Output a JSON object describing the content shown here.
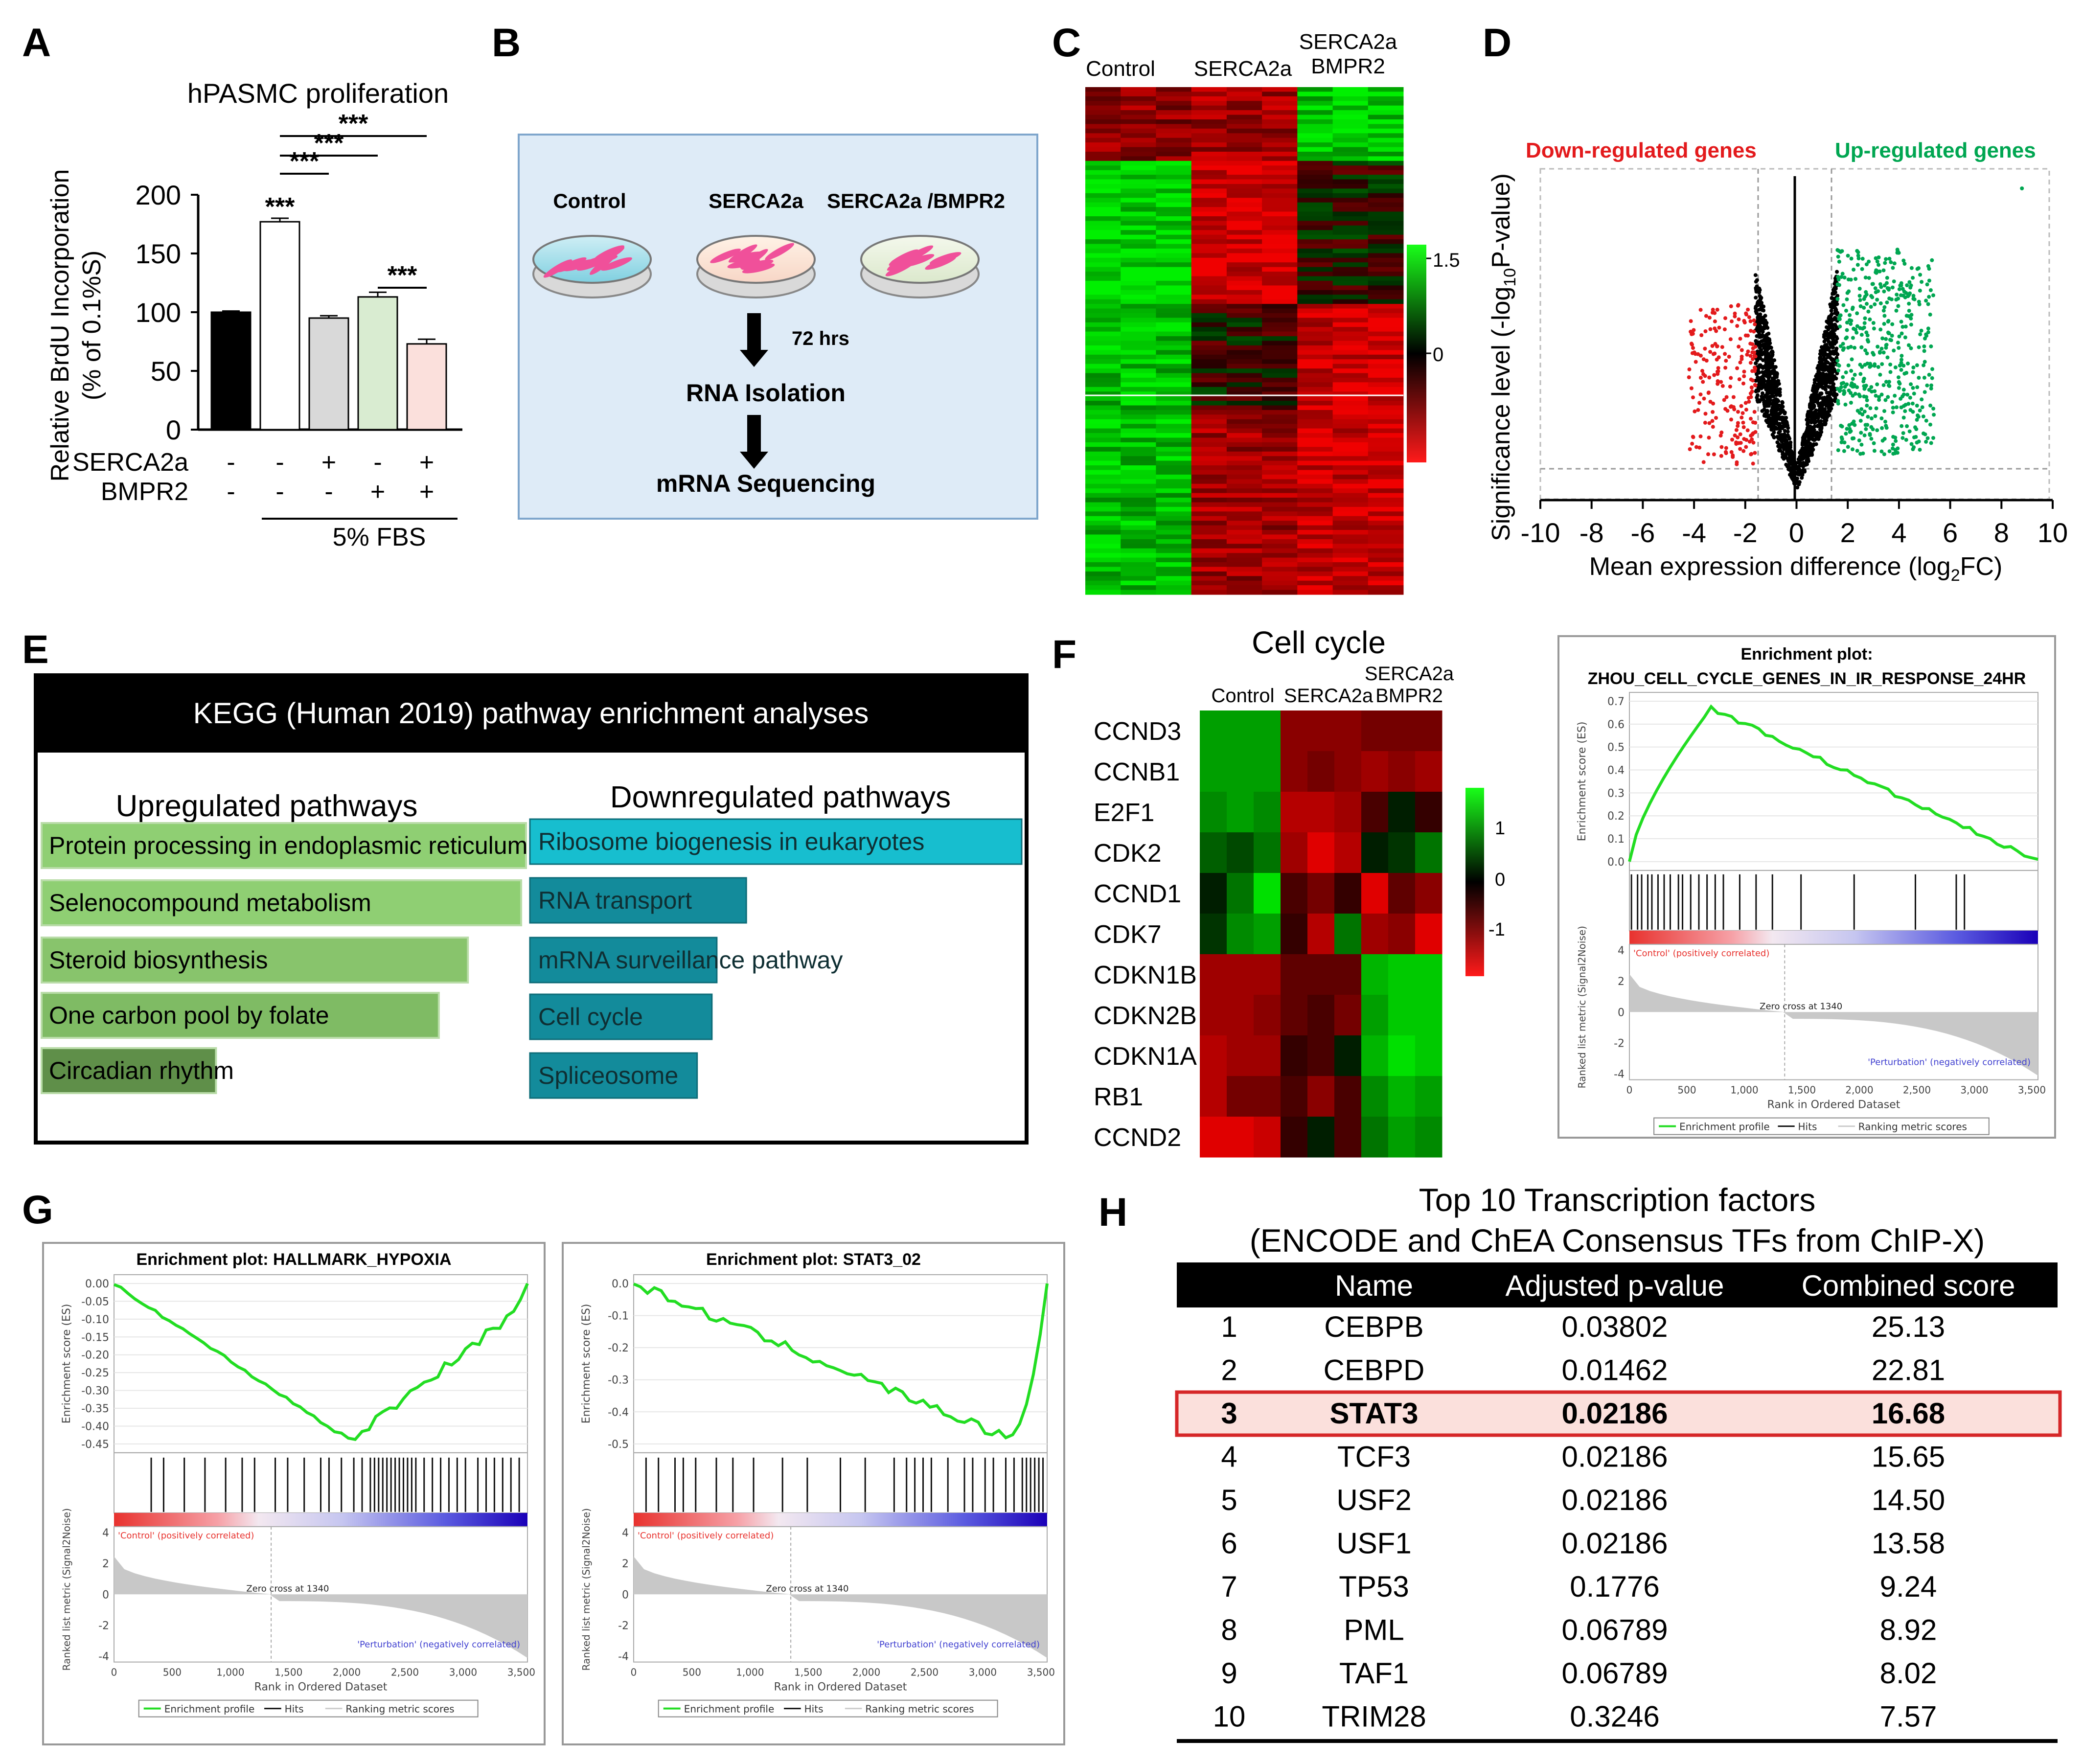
{
  "panel_labels": {
    "a": "A",
    "b": "B",
    "c": "C",
    "d": "D",
    "e": "E",
    "f": "F",
    "g": "G",
    "h": "H"
  },
  "panelA": {
    "chart_data": {
      "type": "bar",
      "title": "hPASMC proliferation",
      "ylabel_line1": "Relative BrdU Incorporation",
      "ylabel_line2": "(% of 0.1%S)",
      "ylim": [
        0,
        200
      ],
      "yticks": [
        "0",
        "50",
        "100",
        "150",
        "200"
      ],
      "values": [
        100,
        177,
        95,
        113,
        73
      ],
      "errors": [
        1,
        3,
        2,
        4,
        4
      ],
      "colors": [
        "#000000",
        "#ffffff",
        "#d9d9d9",
        "#d9ecd1",
        "#fbe0dc"
      ],
      "sig_labels": [
        "***",
        "***",
        "***",
        "***",
        "***"
      ],
      "row_labels": [
        "SERCA2a",
        "BMPR2"
      ],
      "row1_signs": [
        "-",
        "-",
        "+",
        "-",
        "+"
      ],
      "row2_signs": [
        "-",
        "-",
        "-",
        "+",
        "+"
      ],
      "group_label": "5% FBS"
    }
  },
  "panelB": {
    "dish_labels": [
      "Control",
      "SERCA2a",
      "SERCA2a /BMPR2"
    ],
    "step_time": "72 hrs",
    "step1": "RNA Isolation",
    "step2": "mRNA Sequencing"
  },
  "panelC": {
    "col_labels": [
      "Control",
      "SERCA2a"
    ],
    "col3_line1": "SERCA2a",
    "col3_line2": "BMPR2",
    "scale_ticks": [
      "1.5",
      "0"
    ]
  },
  "panelD": {
    "chart_data": {
      "type": "scatter",
      "xlabel": "Mean expression difference (log",
      "xlabel_sub": "2",
      "xlabel_end": "FC)",
      "ylabel": "Significance level (-log",
      "ylabel_sub": "10",
      "ylabel_end": "P-value)",
      "xlim": [
        -10,
        10
      ],
      "xticks": [
        "-10",
        "-8",
        "-6",
        "-4",
        "-2",
        "0",
        "2",
        "4",
        "6",
        "8",
        "10"
      ],
      "threshold_fc": [
        -1.5,
        1.5
      ],
      "legend_down": "Down-regulated genes",
      "legend_up": "Up-regulated genes",
      "color_down": "#e31a1c",
      "color_up": "#00a651"
    }
  },
  "panelE": {
    "title": "KEGG (Human 2019) pathway enrichment analyses",
    "up_heading": "Upregulated pathways",
    "down_heading": "Downregulated pathways",
    "up": [
      {
        "label": "Protein processing in endoplasmic reticulum",
        "value": 1.0,
        "color": "#8fcf73"
      },
      {
        "label": "Selenocompound metabolism",
        "value": 0.99,
        "color": "#8fcf73"
      },
      {
        "label": "Steroid biosynthesis",
        "value": 0.88,
        "color": "#88c46c"
      },
      {
        "label": "One carbon pool by folate",
        "value": 0.82,
        "color": "#7fbb64"
      },
      {
        "label": "Circadian rhythm",
        "value": 0.36,
        "color": "#5f8f49"
      }
    ],
    "down": [
      {
        "label": "Ribosome biogenesis in eukaryotes",
        "value": 1.0,
        "color": "#17becf"
      },
      {
        "label": "RNA transport",
        "value": 0.44,
        "color": "#138b9b"
      },
      {
        "label": "mRNA surveillance pathway",
        "value": 0.38,
        "color": "#138b9b"
      },
      {
        "label": "Cell cycle",
        "value": 0.37,
        "color": "#138b9b"
      },
      {
        "label": "Spliceosome",
        "value": 0.34,
        "color": "#138b9b"
      }
    ]
  },
  "panelF": {
    "title": "Cell cycle",
    "col_labels": [
      "Control",
      "SERCA2a"
    ],
    "col3_line1": "SERCA2a",
    "col3_line2": "BMPR2",
    "genes": [
      "CCND3",
      "CCNB1",
      "E2F1",
      "CDK2",
      "CCND1",
      "CDK7",
      "CDKN1B",
      "CDKN2B",
      "CDKN1A",
      "RB1",
      "CCND2"
    ],
    "scale_ticks": [
      "1",
      "0",
      "-1"
    ],
    "gsea": {
      "title_line1": "Enrichment plot:",
      "title_line2": "ZHOU_CELL_CYCLE_GENES_IN_IR_RESPONSE_24HR",
      "es_ticks": [
        "0.7",
        "0.6",
        "0.5",
        "0.4",
        "0.3",
        "0.2",
        "0.1",
        "0.0"
      ],
      "es_ylabel": "Enrichment score (ES)",
      "rank_ticks": [
        "4",
        "2",
        "0",
        "-2",
        "-4"
      ],
      "rank_ylabel": "Ranked list metric (Signal2Noise)",
      "x_ticks": [
        "0",
        "500",
        "1,000",
        "1,500",
        "2,000",
        "2,500",
        "3,000",
        "3,500"
      ],
      "xlabel": "Rank in Ordered Dataset",
      "pos_label": "'Control' (positively correlated)",
      "neg_label": "'Perturbation' (negatively correlated)",
      "zero_cross": "Zero cross at 1340",
      "legend": [
        "Enrichment profile",
        "Hits",
        "Ranking metric scores"
      ]
    }
  },
  "panelG": {
    "plots": [
      {
        "title": "Enrichment plot: HALLMARK_HYPOXIA",
        "es_ticks": [
          "0.00",
          "-0.05",
          "-0.10",
          "-0.15",
          "-0.20",
          "-0.25",
          "-0.30",
          "-0.35",
          "-0.40",
          "-0.45"
        ],
        "es_ylabel": "Enrichment score (ES)",
        "rank_ticks": [
          "4",
          "2",
          "0",
          "-2",
          "-4"
        ],
        "rank_ylabel": "Ranked list metric (Signal2Noise)",
        "x_ticks": [
          "0",
          "500",
          "1,000",
          "1,500",
          "2,000",
          "2,500",
          "3,000",
          "3,500"
        ],
        "xlabel": "Rank in Ordered Dataset",
        "pos_label": "'Control' (positively correlated)",
        "neg_label": "'Perturbation' (negatively correlated)",
        "zero_cross": "Zero cross at 1340",
        "legend": [
          "Enrichment profile",
          "Hits",
          "Ranking metric scores"
        ]
      },
      {
        "title": "Enrichment plot: STAT3_02",
        "es_ticks": [
          "0.0",
          "-0.1",
          "-0.2",
          "-0.3",
          "-0.4",
          "-0.5"
        ],
        "es_ylabel": "Enrichment score (ES)",
        "rank_ticks": [
          "4",
          "2",
          "0",
          "-2",
          "-4"
        ],
        "rank_ylabel": "Ranked list metric (Signal2Noise)",
        "x_ticks": [
          "0",
          "500",
          "1,000",
          "1,500",
          "2,000",
          "2,500",
          "3,000",
          "3,500"
        ],
        "xlabel": "Rank in Ordered Dataset",
        "pos_label": "'Control' (positively correlated)",
        "neg_label": "'Perturbation' (negatively correlated)",
        "zero_cross": "Zero cross at 1340",
        "legend": [
          "Enrichment profile",
          "Hits",
          "Ranking metric scores"
        ]
      }
    ]
  },
  "panelH": {
    "title_line1": "Top 10 Transcription factors",
    "title_line2": "(ENCODE and ChEA Consensus TFs from ChIP-X)",
    "headers": [
      "Name",
      "Adjusted p-value",
      "Combined score"
    ],
    "rows": [
      [
        "1",
        "CEBPB",
        "0.03802",
        "25.13"
      ],
      [
        "2",
        "CEBPD",
        "0.01462",
        "22.81"
      ],
      [
        "3",
        "STAT3",
        "0.02186",
        "16.68"
      ],
      [
        "4",
        "TCF3",
        "0.02186",
        "15.65"
      ],
      [
        "5",
        "USF2",
        "0.02186",
        "14.50"
      ],
      [
        "6",
        "USF1",
        "0.02186",
        "13.58"
      ],
      [
        "7",
        "TP53",
        "0.1776",
        "9.24"
      ],
      [
        "8",
        "PML",
        "0.06789",
        "8.92"
      ],
      [
        "9",
        "TAF1",
        "0.06789",
        "8.02"
      ],
      [
        "10",
        "TRIM28",
        "0.3246",
        "7.57"
      ]
    ],
    "highlight_row": 3
  }
}
